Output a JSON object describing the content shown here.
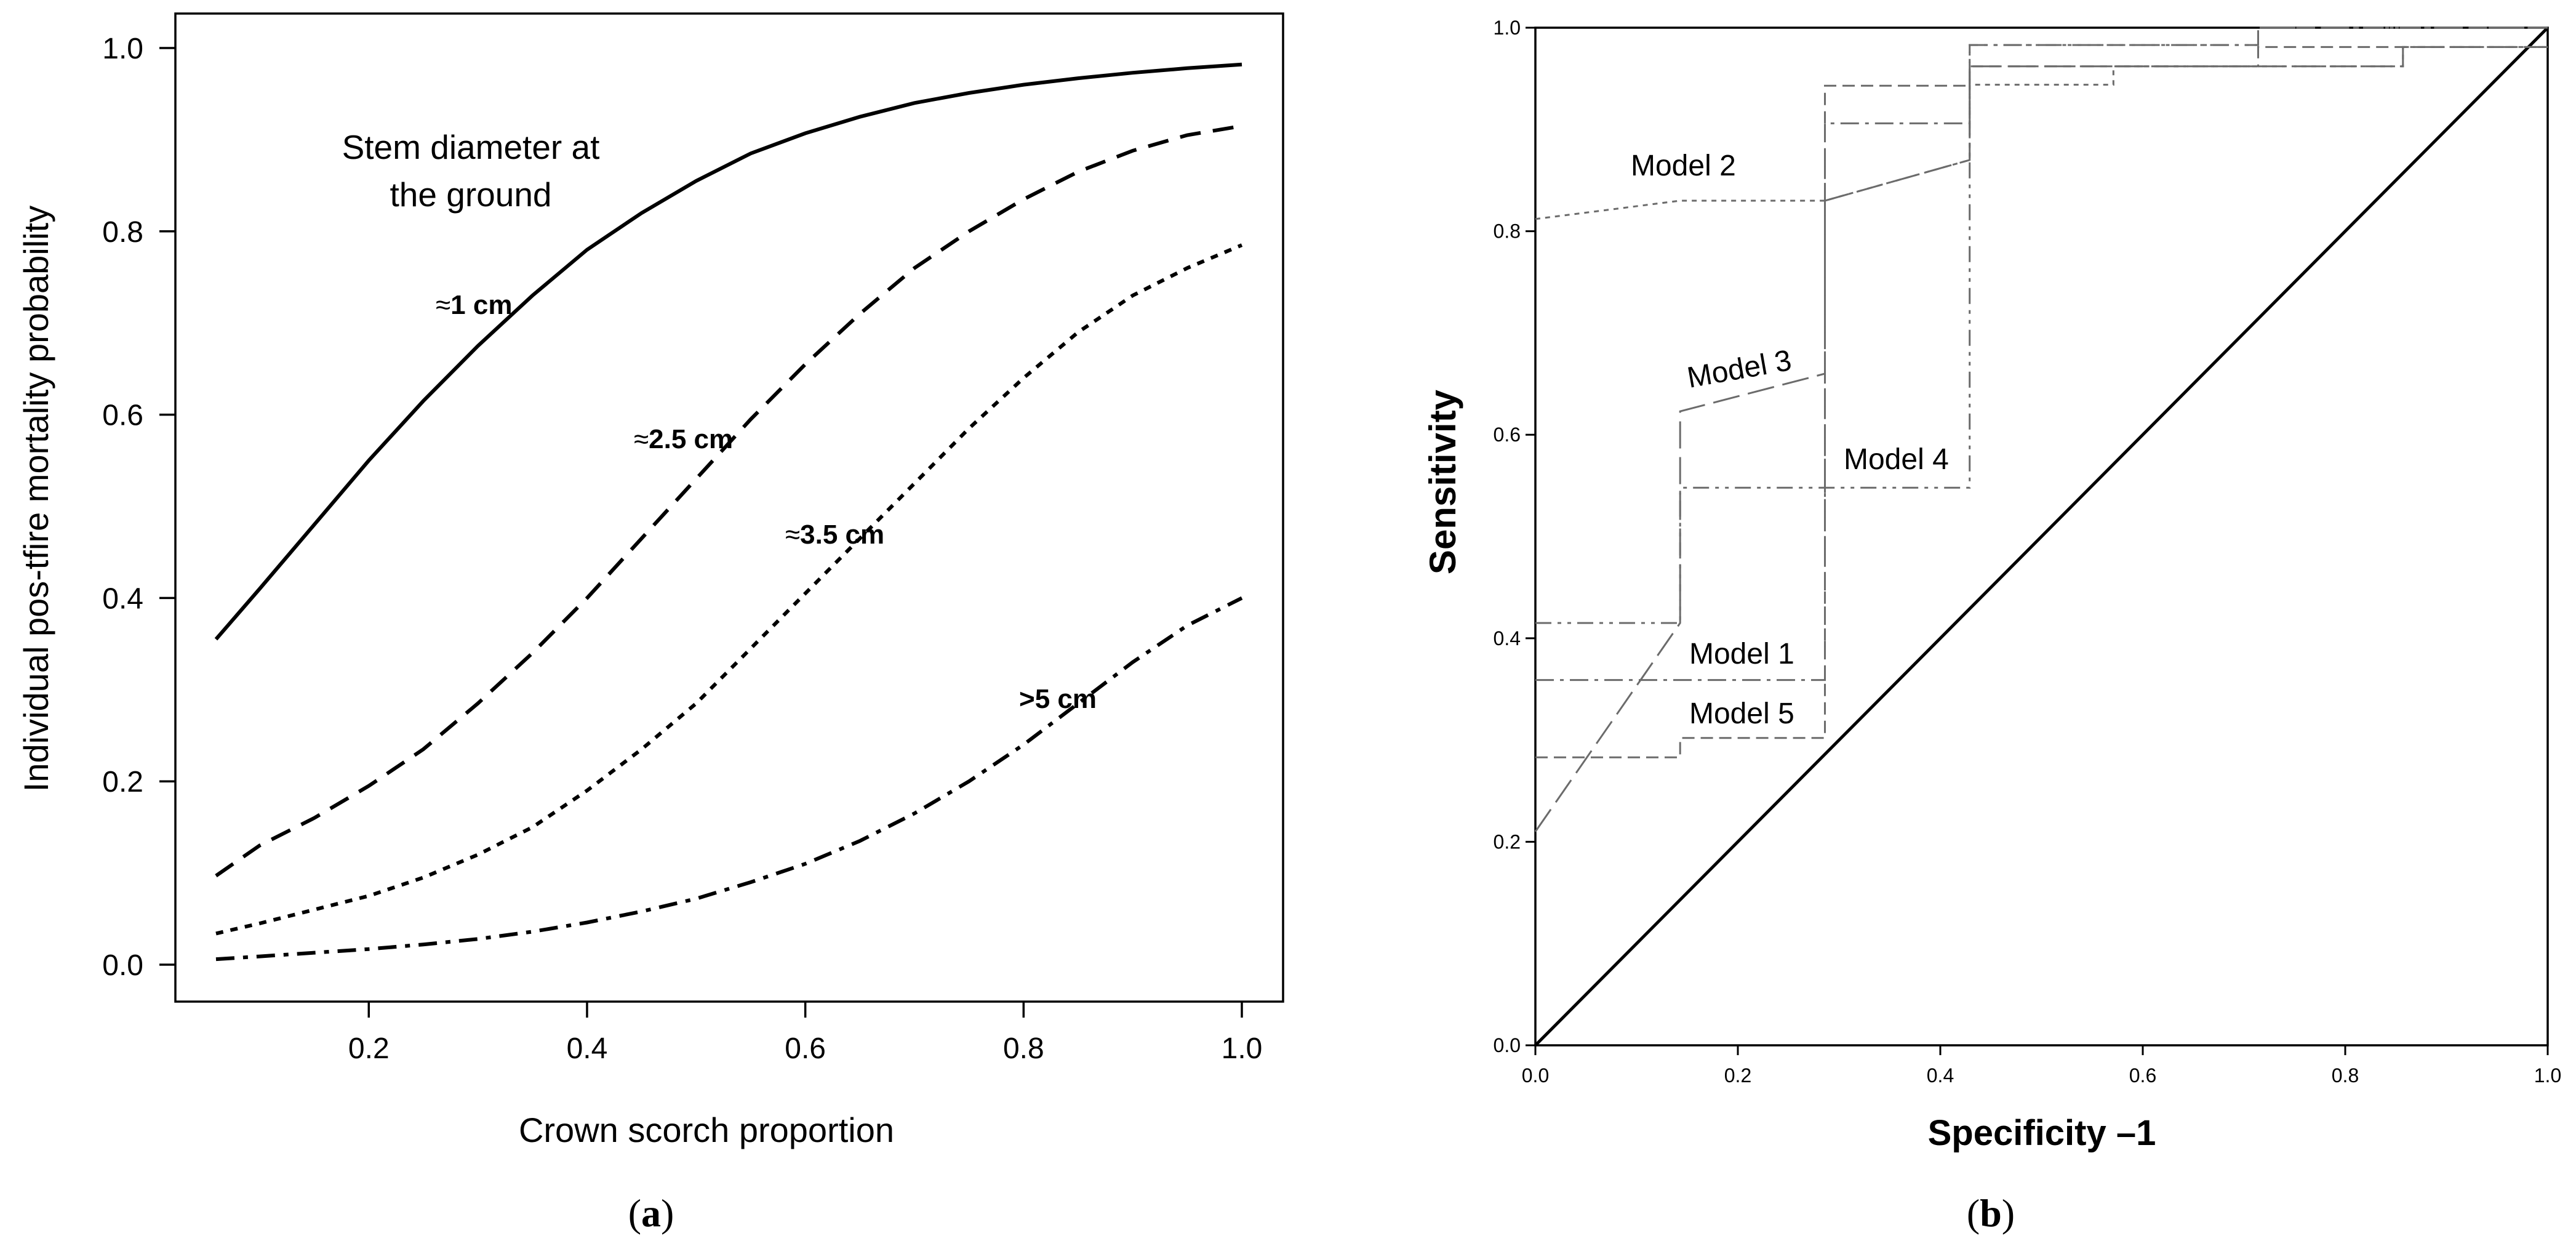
{
  "panels": {
    "a_caption_prefix": "(",
    "a_caption_letter": "a",
    "a_caption_suffix": ")",
    "b_caption_prefix": "(",
    "b_caption_letter": "b",
    "b_caption_suffix": ")"
  },
  "chart_data": [
    {
      "type": "line",
      "panel": "a",
      "title": "",
      "xlabel": "Crown scorch proportion",
      "ylabel": "Individual pos-tfire mortality probability",
      "xlim": [
        0.06,
        1.0
      ],
      "ylim": [
        0.0,
        1.0
      ],
      "xticks": [
        0.2,
        0.4,
        0.6,
        0.8,
        1.0
      ],
      "xtick_labels": [
        "0.2",
        "0.4",
        "0.6",
        "0.8",
        "1.0"
      ],
      "yticks": [
        0.0,
        0.2,
        0.4,
        0.6,
        0.8,
        1.0
      ],
      "ytick_labels": [
        "0.0",
        "0.2",
        "0.4",
        "0.6",
        "0.8",
        "1.0"
      ],
      "grid": false,
      "legend_title_lines": [
        "Stem diameter at",
        "the ground"
      ],
      "x": [
        0.06,
        0.1,
        0.15,
        0.2,
        0.25,
        0.3,
        0.35,
        0.4,
        0.45,
        0.5,
        0.55,
        0.6,
        0.65,
        0.7,
        0.75,
        0.8,
        0.85,
        0.9,
        0.95,
        1.0
      ],
      "series": [
        {
          "name": "≈1 cm",
          "style": "solid",
          "label_prefix": "≈",
          "label_text": "1 cm",
          "values": [
            0.355,
            0.41,
            0.48,
            0.55,
            0.615,
            0.675,
            0.73,
            0.78,
            0.82,
            0.855,
            0.885,
            0.907,
            0.925,
            0.94,
            0.951,
            0.96,
            0.967,
            0.973,
            0.978,
            0.982
          ]
        },
        {
          "name": "≈2.5 cm",
          "style": "dashed",
          "label_prefix": "≈",
          "label_text": "2.5 cm",
          "values": [
            0.097,
            0.13,
            0.16,
            0.195,
            0.235,
            0.285,
            0.34,
            0.4,
            0.465,
            0.53,
            0.595,
            0.655,
            0.71,
            0.76,
            0.8,
            0.835,
            0.865,
            0.888,
            0.905,
            0.915
          ]
        },
        {
          "name": "≈3.5 cm",
          "style": "dotted",
          "label_prefix": "≈",
          "label_text": "3.5 cm",
          "values": [
            0.034,
            0.045,
            0.06,
            0.075,
            0.095,
            0.12,
            0.15,
            0.19,
            0.235,
            0.285,
            0.345,
            0.405,
            0.465,
            0.525,
            0.585,
            0.64,
            0.69,
            0.73,
            0.76,
            0.785
          ]
        },
        {
          "name": ">5 cm",
          "style": "dashdot",
          "label_prefix": "",
          "label_text": ">5 cm",
          "values": [
            0.006,
            0.009,
            0.013,
            0.017,
            0.022,
            0.028,
            0.036,
            0.046,
            0.058,
            0.072,
            0.09,
            0.11,
            0.135,
            0.165,
            0.2,
            0.24,
            0.285,
            0.33,
            0.37,
            0.4
          ]
        }
      ]
    },
    {
      "type": "line",
      "panel": "b",
      "title": "",
      "subtype": "ROC step curves",
      "xlabel": "Specificity –1",
      "ylabel": "Sensitivity",
      "xlim": [
        0.0,
        1.0
      ],
      "ylim": [
        0.0,
        1.0
      ],
      "xticks": [
        0.0,
        0.2,
        0.4,
        0.6,
        0.8,
        1.0
      ],
      "xtick_labels": [
        "0.0",
        "0.2",
        "0.4",
        "0.6",
        "0.8",
        "1.0"
      ],
      "yticks": [
        0.0,
        0.2,
        0.4,
        0.6,
        0.8,
        1.0
      ],
      "ytick_labels": [
        "0.0",
        "0.2",
        "0.4",
        "0.6",
        "0.8",
        "1.0"
      ],
      "grid": false,
      "reference_line": {
        "name": "chance diagonal",
        "x": [
          0.0,
          1.0
        ],
        "y": [
          0.0,
          1.0
        ]
      },
      "series": [
        {
          "name": "Model 1",
          "style": "dashdot",
          "x": [
            0,
            0.143,
            0.143,
            0.286,
            0.286,
            0.429,
            0.429,
            0.714,
            0.714,
            1.0
          ],
          "y": [
            0.359,
            0.359,
            0.359,
            0.359,
            0.906,
            0.906,
            0.983,
            0.983,
            1.0,
            1.0
          ]
        },
        {
          "name": "Model 2",
          "style": "dotted",
          "x": [
            0,
            0.143,
            0.286,
            0.429,
            0.429,
            0.571,
            0.571,
            0.857,
            0.857,
            1.0
          ],
          "y": [
            0.812,
            0.83,
            0.83,
            0.87,
            0.944,
            0.944,
            0.962,
            0.962,
            0.981,
            0.981
          ]
        },
        {
          "name": "Model 3",
          "style": "longdash",
          "x": [
            0,
            0.143,
            0.143,
            0.286,
            0.286,
            0.429,
            0.429,
            0.857,
            0.857,
            1.0
          ],
          "y": [
            0.21,
            0.415,
            0.623,
            0.66,
            0.83,
            0.87,
            0.962,
            0.962,
            0.981,
            0.981
          ]
        },
        {
          "name": "Model 4",
          "style": "dashdotdot",
          "x": [
            0,
            0.143,
            0.143,
            0.286,
            0.286,
            0.429,
            0.429,
            0.714,
            0.714,
            1.0
          ],
          "y": [
            0.415,
            0.415,
            0.548,
            0.548,
            0.548,
            0.548,
            0.983,
            0.983,
            1.0,
            1.0
          ]
        },
        {
          "name": "Model 5",
          "style": "shortdash",
          "x": [
            0,
            0.143,
            0.143,
            0.286,
            0.286,
            0.429,
            0.429,
            0.714,
            0.714,
            1.0
          ],
          "y": [
            0.283,
            0.283,
            0.302,
            0.302,
            0.943,
            0.943,
            0.962,
            0.962,
            0.981,
            0.981
          ]
        }
      ]
    }
  ]
}
